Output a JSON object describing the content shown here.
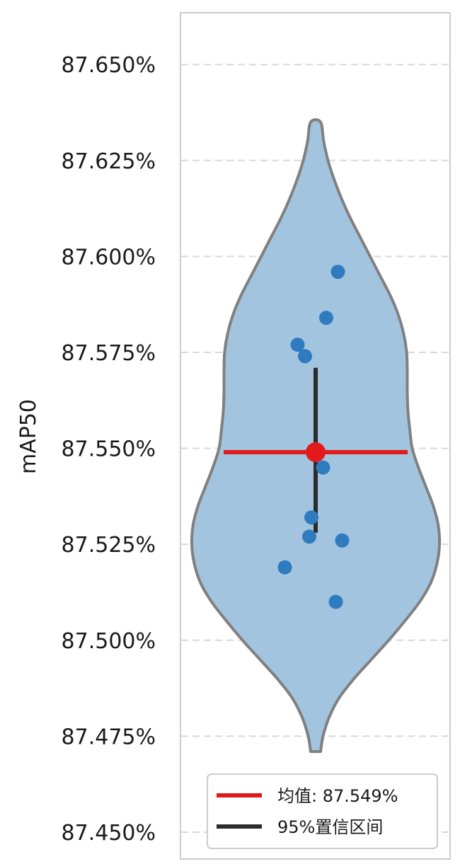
{
  "chart_data": {
    "type": "violin",
    "ylabel": "mAP50",
    "ylim": [
      87.45,
      87.66
    ],
    "yticks": [
      87.45,
      87.475,
      87.5,
      87.525,
      87.55,
      87.575,
      87.6,
      87.625,
      87.65
    ],
    "ytick_labels": [
      "87.450%",
      "87.475%",
      "87.500%",
      "87.525%",
      "87.550%",
      "87.575%",
      "87.600%",
      "87.625%",
      "87.650%"
    ],
    "grid": "horizontal dashed",
    "points": [
      {
        "x_jitter": 0.21,
        "y": 87.596
      },
      {
        "x_jitter": 0.1,
        "y": 87.584
      },
      {
        "x_jitter": -0.17,
        "y": 87.577
      },
      {
        "x_jitter": -0.1,
        "y": 87.574
      },
      {
        "x_jitter": 0.07,
        "y": 87.545
      },
      {
        "x_jitter": -0.04,
        "y": 87.532
      },
      {
        "x_jitter": -0.06,
        "y": 87.527
      },
      {
        "x_jitter": 0.25,
        "y": 87.526
      },
      {
        "x_jitter": -0.29,
        "y": 87.519
      },
      {
        "x_jitter": 0.19,
        "y": 87.51
      }
    ],
    "mean": 87.549,
    "ci95": [
      87.528,
      87.571
    ],
    "violin_extent": [
      87.471,
      87.635
    ],
    "violin_profile": [
      {
        "y": 87.471,
        "w": 0.04
      },
      {
        "y": 87.475,
        "w": 0.06
      },
      {
        "y": 87.48,
        "w": 0.11
      },
      {
        "y": 87.485,
        "w": 0.19
      },
      {
        "y": 87.49,
        "w": 0.31
      },
      {
        "y": 87.495,
        "w": 0.45
      },
      {
        "y": 87.5,
        "w": 0.59
      },
      {
        "y": 87.505,
        "w": 0.72
      },
      {
        "y": 87.51,
        "w": 0.84
      },
      {
        "y": 87.515,
        "w": 0.93
      },
      {
        "y": 87.52,
        "w": 0.98
      },
      {
        "y": 87.525,
        "w": 1.0
      },
      {
        "y": 87.53,
        "w": 0.99
      },
      {
        "y": 87.535,
        "w": 0.95
      },
      {
        "y": 87.54,
        "w": 0.89
      },
      {
        "y": 87.545,
        "w": 0.83
      },
      {
        "y": 87.55,
        "w": 0.78
      },
      {
        "y": 87.555,
        "w": 0.76
      },
      {
        "y": 87.56,
        "w": 0.745
      },
      {
        "y": 87.565,
        "w": 0.74
      },
      {
        "y": 87.57,
        "w": 0.74
      },
      {
        "y": 87.575,
        "w": 0.735
      },
      {
        "y": 87.58,
        "w": 0.71
      },
      {
        "y": 87.585,
        "w": 0.665
      },
      {
        "y": 87.59,
        "w": 0.6
      },
      {
        "y": 87.595,
        "w": 0.52
      },
      {
        "y": 87.6,
        "w": 0.44
      },
      {
        "y": 87.605,
        "w": 0.36
      },
      {
        "y": 87.61,
        "w": 0.28
      },
      {
        "y": 87.615,
        "w": 0.21
      },
      {
        "y": 87.62,
        "w": 0.15
      },
      {
        "y": 87.625,
        "w": 0.1
      },
      {
        "y": 87.63,
        "w": 0.065
      },
      {
        "y": 87.635,
        "w": 0.04
      }
    ],
    "legend": {
      "placement": "bottom-right",
      "entries": [
        {
          "label": "均值: 87.549%",
          "color": "#e31a1c"
        },
        {
          "label": "95%置信区间",
          "color": "#2b2b2b"
        }
      ]
    },
    "colors": {
      "violin_fill": "#a3c4df",
      "violin_edge": "#808080",
      "point": "#2f7bbf",
      "mean": "#e31a1c",
      "ci": "#2b2b2b",
      "grid": "#d9d9d9",
      "frame": "#cccccc"
    }
  }
}
